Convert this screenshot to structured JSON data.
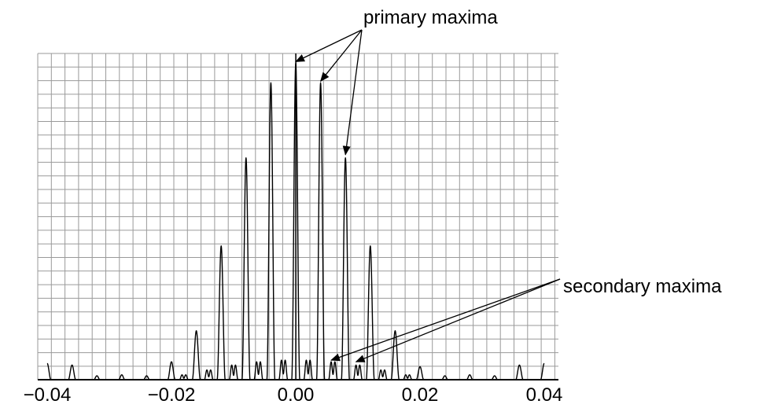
{
  "chart_data": {
    "type": "line",
    "title": "",
    "xlabel": "",
    "ylabel": "",
    "xlim": [
      -0.04,
      0.04
    ],
    "ylim": [
      0,
      1.0
    ],
    "grid": true,
    "x_tick_labels": [
      "−0.04",
      "−0.02",
      "0.00",
      "0.02",
      "0.04"
    ],
    "x_ticks": [
      -0.04,
      -0.02,
      0.0,
      0.02,
      0.04
    ],
    "series": [
      {
        "peaks": [
          {
            "x": 0.0,
            "y": 0.97,
            "w": 0.00065,
            "kind": "primary"
          },
          {
            "x": 0.004,
            "y": 0.91,
            "w": 0.00065,
            "kind": "primary"
          },
          {
            "x": 0.008,
            "y": 0.68,
            "w": 0.00065,
            "kind": "primary"
          },
          {
            "x": 0.012,
            "y": 0.41,
            "w": 0.00065,
            "kind": "primary"
          },
          {
            "x": 0.016,
            "y": 0.15,
            "w": 0.00065,
            "kind": "primary"
          },
          {
            "x": -0.004,
            "y": 0.91,
            "w": 0.00065,
            "kind": "primary"
          },
          {
            "x": -0.008,
            "y": 0.68,
            "w": 0.00065,
            "kind": "primary"
          },
          {
            "x": -0.012,
            "y": 0.41,
            "w": 0.00065,
            "kind": "primary"
          },
          {
            "x": -0.016,
            "y": 0.15,
            "w": 0.00065,
            "kind": "primary"
          },
          {
            "x": 0.0017,
            "y": 0.06,
            "w": 0.0004,
            "kind": "secondary"
          },
          {
            "x": 0.0023,
            "y": 0.06,
            "w": 0.0004,
            "kind": "secondary"
          },
          {
            "x": 0.0057,
            "y": 0.055,
            "w": 0.0004,
            "kind": "secondary"
          },
          {
            "x": 0.0063,
            "y": 0.055,
            "w": 0.0004,
            "kind": "secondary"
          },
          {
            "x": 0.0097,
            "y": 0.045,
            "w": 0.0004,
            "kind": "secondary"
          },
          {
            "x": 0.0103,
            "y": 0.045,
            "w": 0.0004,
            "kind": "secondary"
          },
          {
            "x": 0.0137,
            "y": 0.03,
            "w": 0.0004,
            "kind": "secondary"
          },
          {
            "x": 0.0143,
            "y": 0.03,
            "w": 0.0004,
            "kind": "secondary"
          },
          {
            "x": 0.0177,
            "y": 0.015,
            "w": 0.0004,
            "kind": "secondary"
          },
          {
            "x": 0.0183,
            "y": 0.015,
            "w": 0.0004,
            "kind": "secondary"
          },
          {
            "x": -0.0017,
            "y": 0.06,
            "w": 0.0004,
            "kind": "secondary"
          },
          {
            "x": -0.0023,
            "y": 0.06,
            "w": 0.0004,
            "kind": "secondary"
          },
          {
            "x": -0.0057,
            "y": 0.055,
            "w": 0.0004,
            "kind": "secondary"
          },
          {
            "x": -0.0063,
            "y": 0.055,
            "w": 0.0004,
            "kind": "secondary"
          },
          {
            "x": -0.0097,
            "y": 0.045,
            "w": 0.0004,
            "kind": "secondary"
          },
          {
            "x": -0.0103,
            "y": 0.045,
            "w": 0.0004,
            "kind": "secondary"
          },
          {
            "x": -0.0137,
            "y": 0.03,
            "w": 0.0004,
            "kind": "secondary"
          },
          {
            "x": -0.0143,
            "y": 0.03,
            "w": 0.0004,
            "kind": "secondary"
          },
          {
            "x": -0.0177,
            "y": 0.015,
            "w": 0.0004,
            "kind": "secondary"
          },
          {
            "x": -0.0183,
            "y": 0.015,
            "w": 0.0004,
            "kind": "secondary"
          },
          {
            "x": 0.02,
            "y": 0.04,
            "w": 0.0006,
            "kind": "minor"
          },
          {
            "x": 0.024,
            "y": 0.012,
            "w": 0.0005,
            "kind": "minor"
          },
          {
            "x": 0.028,
            "y": 0.015,
            "w": 0.0005,
            "kind": "minor"
          },
          {
            "x": 0.032,
            "y": 0.012,
            "w": 0.0005,
            "kind": "minor"
          },
          {
            "x": 0.036,
            "y": 0.045,
            "w": 0.0006,
            "kind": "minor"
          },
          {
            "x": 0.04,
            "y": 0.05,
            "w": 0.0006,
            "kind": "minor"
          },
          {
            "x": -0.02,
            "y": 0.055,
            "w": 0.0006,
            "kind": "minor"
          },
          {
            "x": -0.024,
            "y": 0.012,
            "w": 0.0005,
            "kind": "minor"
          },
          {
            "x": -0.028,
            "y": 0.015,
            "w": 0.0005,
            "kind": "minor"
          },
          {
            "x": -0.032,
            "y": 0.012,
            "w": 0.0005,
            "kind": "minor"
          },
          {
            "x": -0.036,
            "y": 0.045,
            "w": 0.0006,
            "kind": "minor"
          },
          {
            "x": -0.04,
            "y": 0.05,
            "w": 0.0006,
            "kind": "minor"
          }
        ]
      }
    ],
    "annotations": [
      {
        "text": "primary maxima",
        "targets": [
          {
            "x": 0.0,
            "y": 0.97
          },
          {
            "x": 0.004,
            "y": 0.91
          },
          {
            "x": 0.008,
            "y": 0.68
          }
        ]
      },
      {
        "text": "secondary maxima",
        "targets": [
          {
            "x": 0.0057,
            "y": 0.055
          },
          {
            "x": 0.0097,
            "y": 0.045
          }
        ]
      }
    ]
  },
  "watermark": {
    "color": "#c7cff0"
  }
}
